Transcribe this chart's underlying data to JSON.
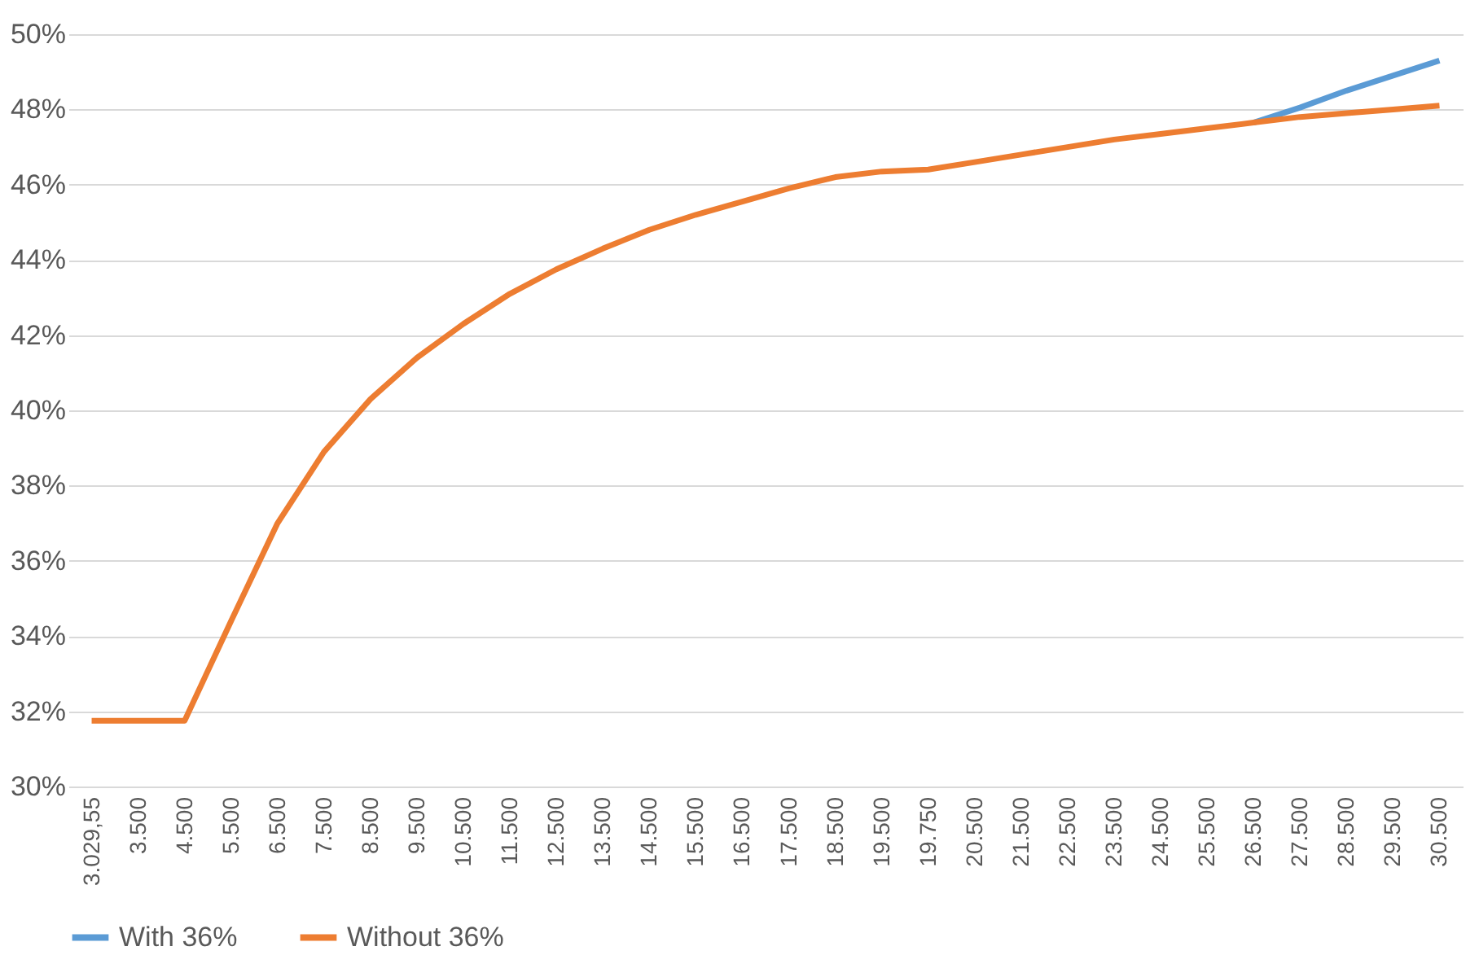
{
  "chart_data": {
    "type": "line",
    "categories": [
      "3.029,55",
      "3.500",
      "4.500",
      "5.500",
      "6.500",
      "7.500",
      "8.500",
      "9.500",
      "10.500",
      "11.500",
      "12.500",
      "13.500",
      "14.500",
      "15.500",
      "16.500",
      "17.500",
      "18.500",
      "19.500",
      "19.750",
      "20.500",
      "21.500",
      "22.500",
      "23.500",
      "24.500",
      "25.500",
      "26.500",
      "27.500",
      "28.500",
      "29.500",
      "30.500"
    ],
    "series": [
      {
        "name": "With 36%",
        "color": "#5b9bd5",
        "values": [
          null,
          null,
          null,
          null,
          null,
          null,
          null,
          null,
          null,
          null,
          null,
          null,
          null,
          null,
          null,
          null,
          null,
          null,
          null,
          null,
          null,
          null,
          null,
          null,
          null,
          47.65,
          48.05,
          48.5,
          48.9,
          49.3
        ]
      },
      {
        "name": "Without 36%",
        "color": "#ed7d31",
        "values": [
          31.75,
          31.75,
          31.75,
          34.4,
          37.0,
          38.9,
          40.3,
          41.4,
          42.3,
          43.1,
          43.75,
          44.3,
          44.8,
          45.2,
          45.55,
          45.9,
          46.2,
          46.35,
          46.4,
          46.6,
          46.8,
          47.0,
          47.2,
          47.35,
          47.5,
          47.65,
          47.8,
          47.9,
          48.0,
          48.1
        ]
      }
    ],
    "ylim": [
      30,
      50
    ],
    "yticks": [
      {
        "value": 30,
        "label": "30%"
      },
      {
        "value": 32,
        "label": "32%"
      },
      {
        "value": 34,
        "label": "34%"
      },
      {
        "value": 36,
        "label": "36%"
      },
      {
        "value": 38,
        "label": "38%"
      },
      {
        "value": 40,
        "label": "40%"
      },
      {
        "value": 42,
        "label": "42%"
      },
      {
        "value": 44,
        "label": "44%"
      },
      {
        "value": 46,
        "label": "46%"
      },
      {
        "value": 48,
        "label": "48%"
      },
      {
        "value": 50,
        "label": "50%"
      }
    ],
    "grid": "y",
    "legend": "bottom",
    "marker": "none",
    "line_style": "solid"
  }
}
